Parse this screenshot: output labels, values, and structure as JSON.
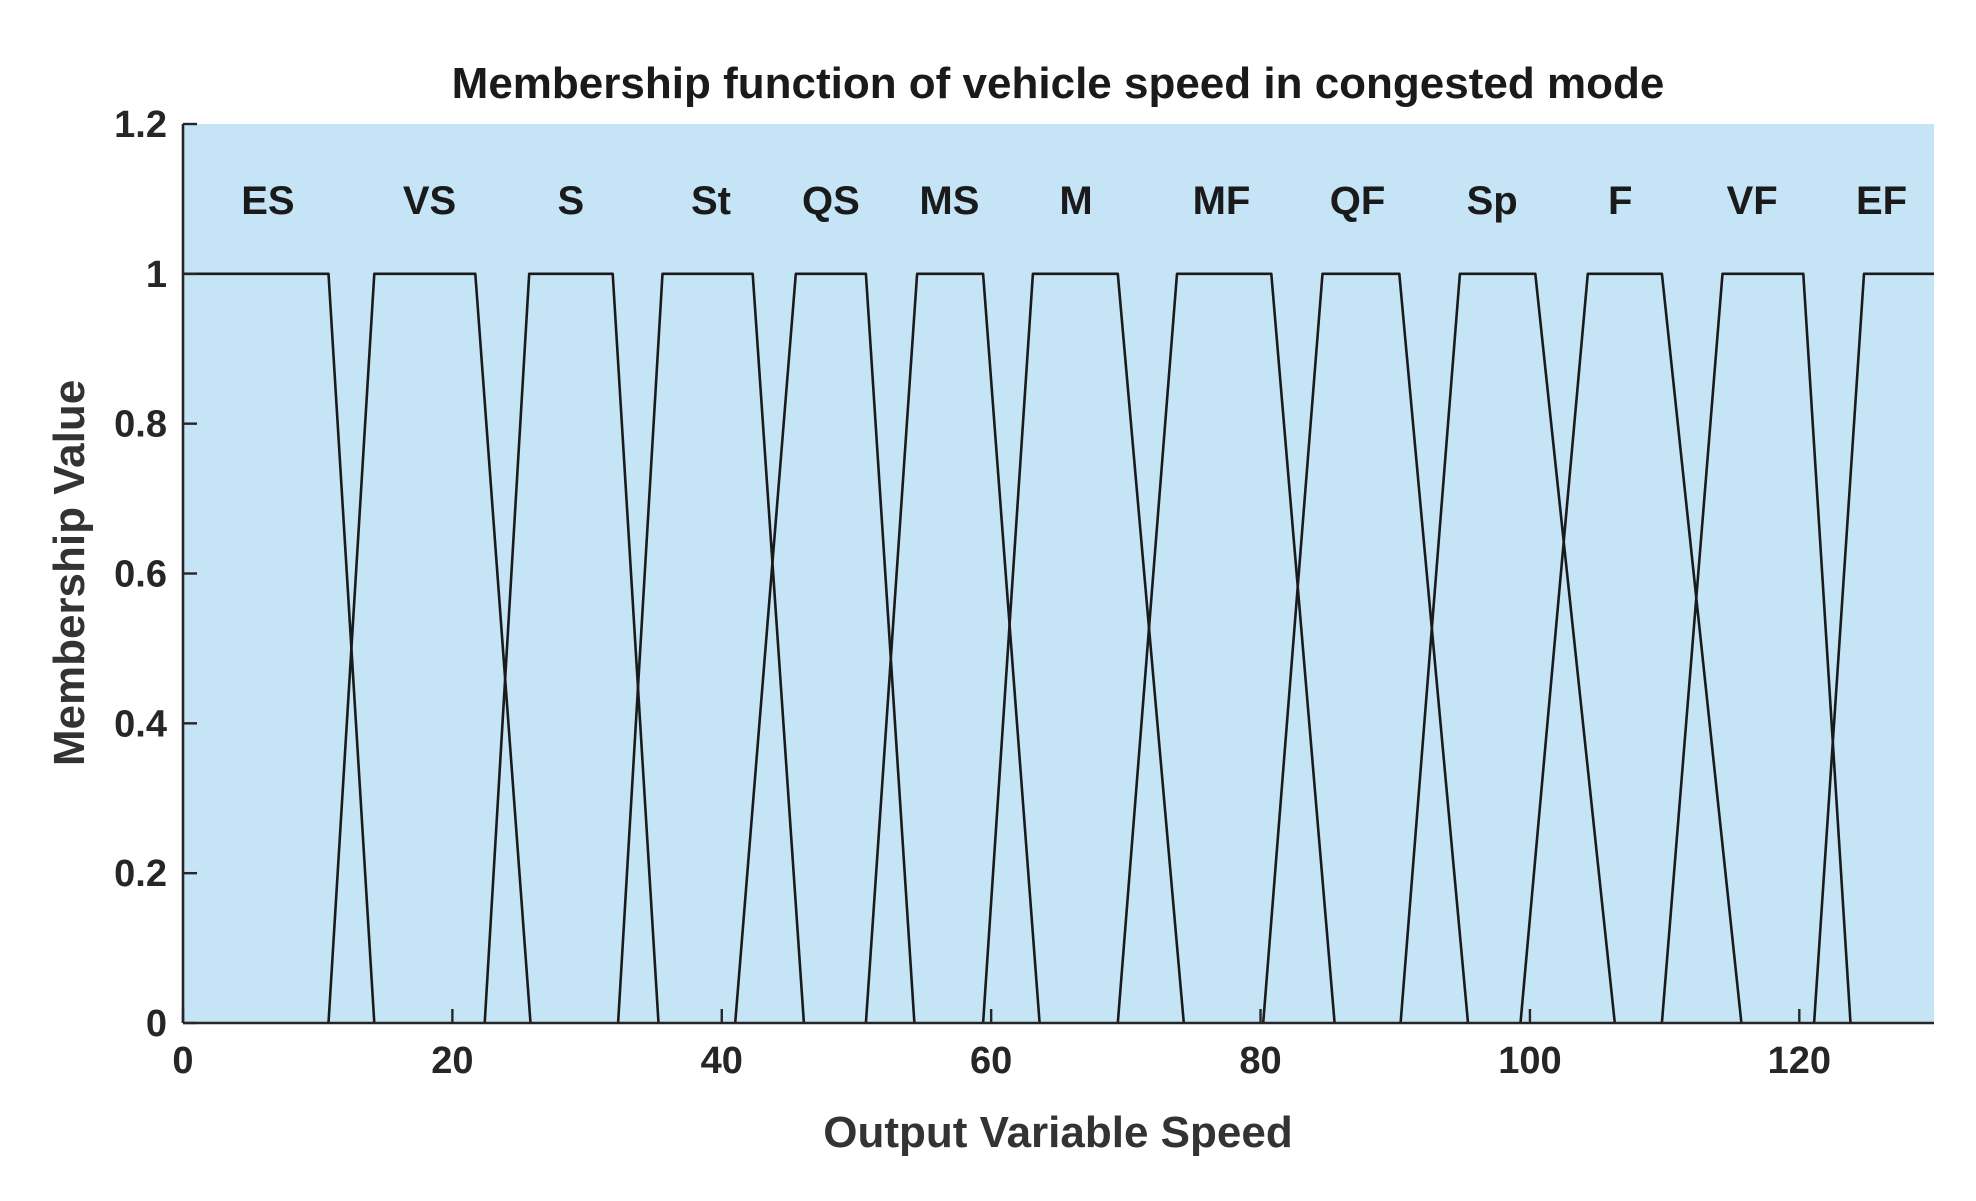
{
  "chart_data": {
    "type": "line",
    "title": "Membership function of vehicle speed in congested mode",
    "xlabel": "Output Variable Speed",
    "ylabel": "Membership Value",
    "xlim": [
      0,
      130
    ],
    "ylim": [
      0,
      1.2
    ],
    "xticks": [
      0,
      20,
      40,
      60,
      80,
      100,
      120
    ],
    "yticks": [
      0,
      0.2,
      0.4,
      0.6,
      0.8,
      1,
      1.2
    ],
    "xtick_labels": [
      "0",
      "20",
      "40",
      "60",
      "80",
      "100",
      "120"
    ],
    "ytick_labels": [
      "0",
      "0.2",
      "0.4",
      "0.6",
      "0.8",
      "1",
      "1.2"
    ],
    "plot_background": "#c5e5f7",
    "line_color": "#1a1a1a",
    "series": [
      {
        "name": "ES",
        "label_x": 6.3,
        "points": [
          [
            0,
            1
          ],
          [
            10.8,
            1
          ],
          [
            14.2,
            0
          ]
        ]
      },
      {
        "name": "VS",
        "label_x": 18.3,
        "points": [
          [
            10.8,
            0
          ],
          [
            14.2,
            1
          ],
          [
            21.7,
            1
          ],
          [
            25.8,
            0
          ]
        ]
      },
      {
        "name": "S",
        "label_x": 28.8,
        "points": [
          [
            22.4,
            0
          ],
          [
            25.7,
            1
          ],
          [
            31.9,
            1
          ],
          [
            35.3,
            0
          ]
        ]
      },
      {
        "name": "St",
        "label_x": 39.2,
        "points": [
          [
            32.3,
            0
          ],
          [
            35.6,
            1
          ],
          [
            42.3,
            1
          ],
          [
            46.1,
            0
          ]
        ]
      },
      {
        "name": "QS",
        "label_x": 48.1,
        "points": [
          [
            41.0,
            0
          ],
          [
            45.5,
            1
          ],
          [
            50.7,
            1
          ],
          [
            54.3,
            0
          ]
        ]
      },
      {
        "name": "MS",
        "label_x": 56.9,
        "points": [
          [
            50.7,
            0
          ],
          [
            54.5,
            1
          ],
          [
            59.4,
            1
          ],
          [
            63.6,
            0
          ]
        ]
      },
      {
        "name": "M",
        "label_x": 66.3,
        "points": [
          [
            59.4,
            0
          ],
          [
            63.1,
            1
          ],
          [
            69.4,
            1
          ],
          [
            74.3,
            0
          ]
        ]
      },
      {
        "name": "MF",
        "label_x": 77.1,
        "points": [
          [
            69.4,
            0
          ],
          [
            73.8,
            1
          ],
          [
            80.8,
            1
          ],
          [
            85.5,
            0
          ]
        ]
      },
      {
        "name": "QF",
        "label_x": 87.2,
        "points": [
          [
            80.2,
            0
          ],
          [
            84.6,
            1
          ],
          [
            90.3,
            1
          ],
          [
            95.4,
            0
          ]
        ]
      },
      {
        "name": "Sp",
        "label_x": 97.2,
        "points": [
          [
            90.4,
            0
          ],
          [
            94.8,
            1
          ],
          [
            100.4,
            1
          ],
          [
            106.3,
            0
          ]
        ]
      },
      {
        "name": "F",
        "label_x": 106.7,
        "points": [
          [
            99.3,
            0
          ],
          [
            104.3,
            1
          ],
          [
            109.8,
            1
          ],
          [
            115.7,
            0
          ]
        ]
      },
      {
        "name": "VF",
        "label_x": 116.5,
        "points": [
          [
            109.8,
            0
          ],
          [
            114.3,
            1
          ],
          [
            120.3,
            1
          ],
          [
            123.8,
            0
          ]
        ]
      },
      {
        "name": "EF",
        "label_x": 126.1,
        "points": [
          [
            121.1,
            0
          ],
          [
            124.8,
            1
          ],
          [
            130,
            1
          ]
        ]
      }
    ]
  }
}
